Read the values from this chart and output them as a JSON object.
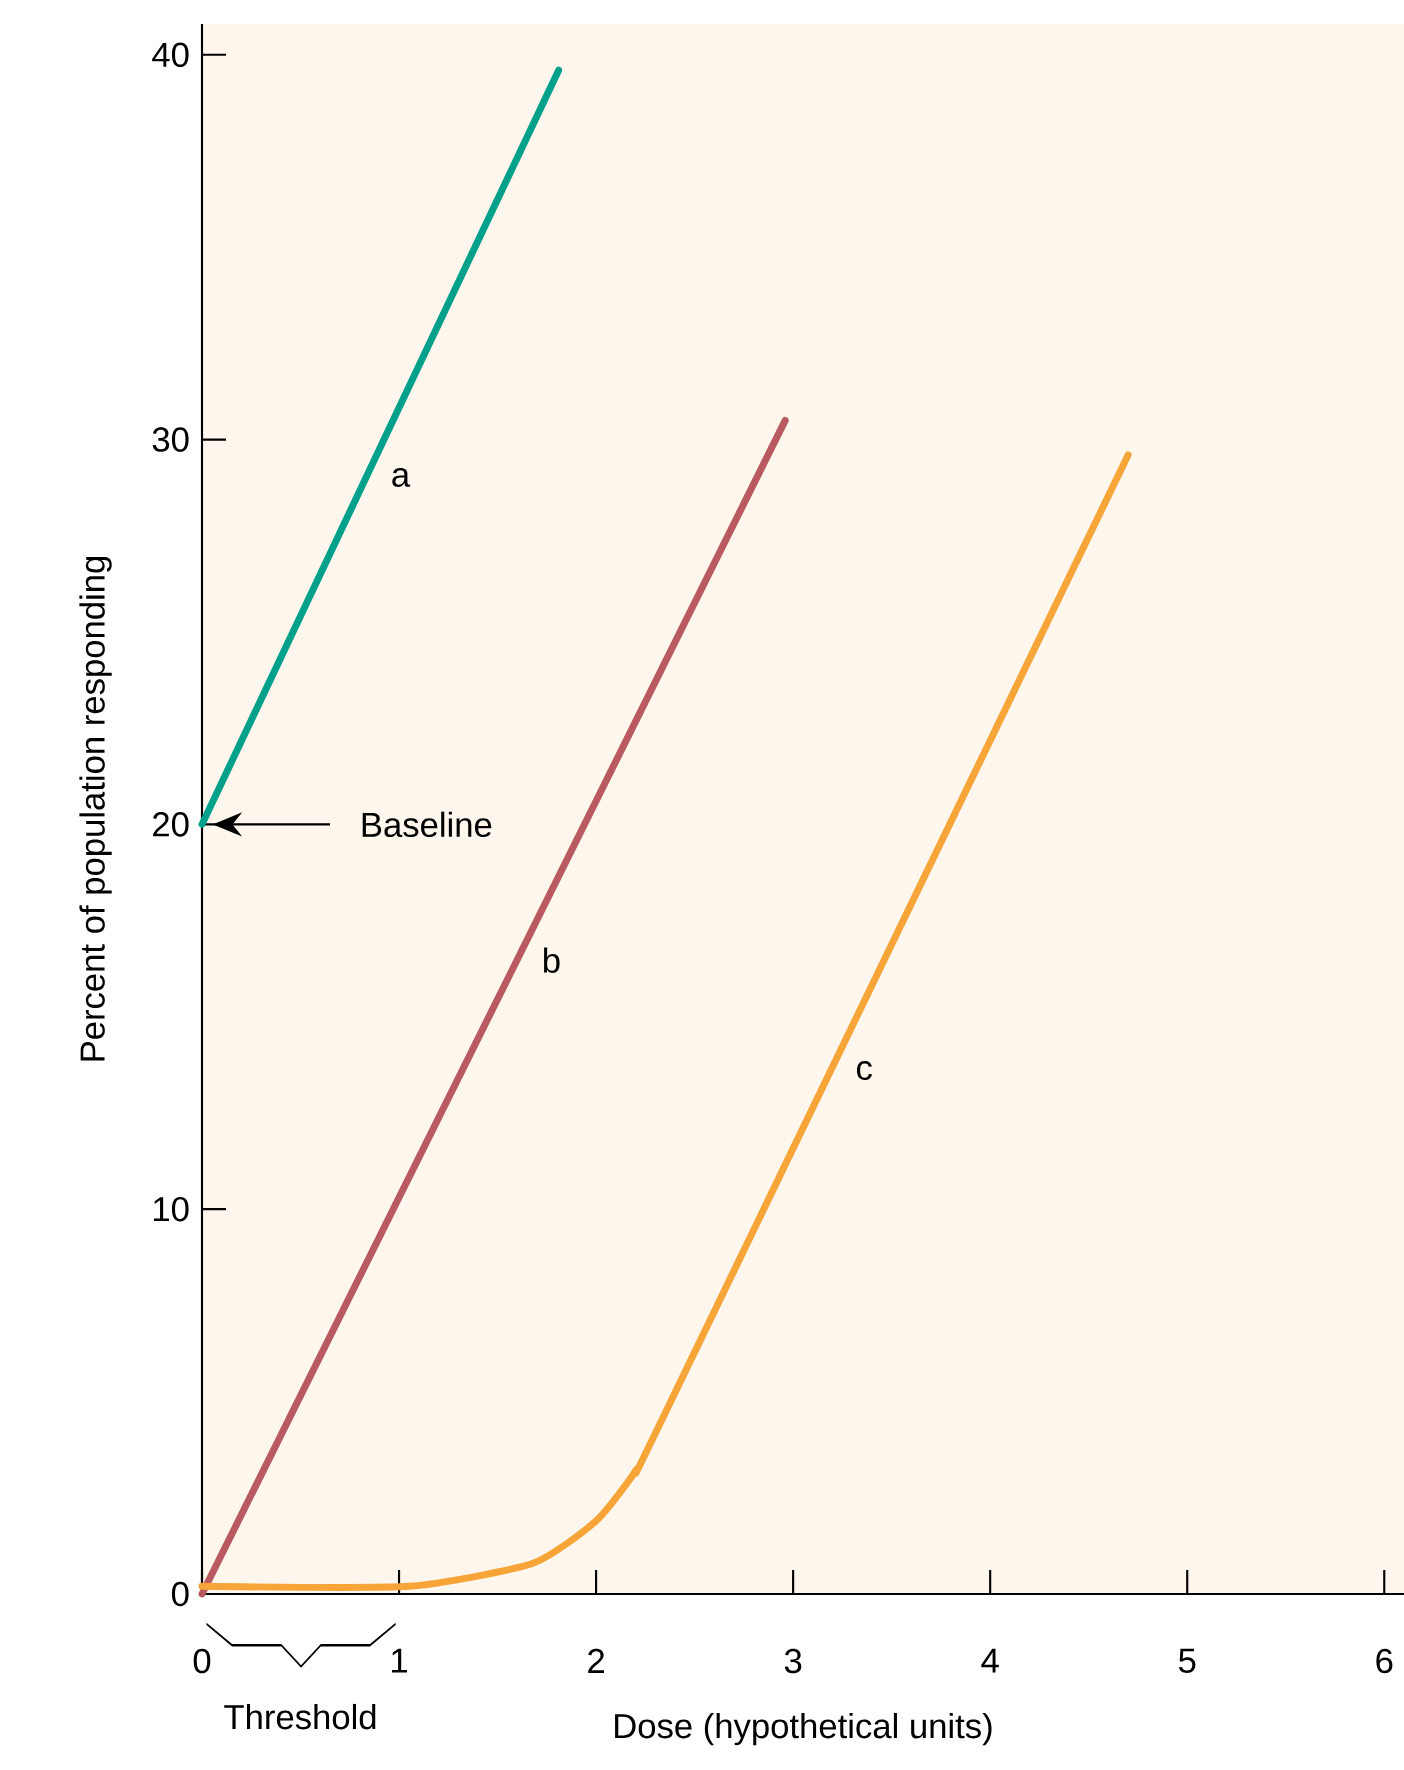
{
  "chart_data": {
    "type": "line",
    "xlabel": "Dose (hypothetical units)",
    "ylabel": "Percent of population responding",
    "xlim": [
      0,
      6.1
    ],
    "ylim": [
      0,
      40.8
    ],
    "xticks": [
      0,
      1,
      2,
      3,
      4,
      5,
      6
    ],
    "yticks": [
      0,
      10,
      20,
      30,
      40
    ],
    "grid": false,
    "legend": false,
    "marker": "none",
    "line_style": "solid",
    "series": [
      {
        "name": "a",
        "color": "#00a08a",
        "x": [
          0,
          1.81
        ],
        "values": [
          20,
          39.6
        ]
      },
      {
        "name": "b",
        "color": "#b85a60",
        "x": [
          0,
          2.96
        ],
        "values": [
          0,
          30.5
        ]
      },
      {
        "name": "c",
        "color": "#f7a538",
        "x": [
          0,
          1.05,
          1.68,
          2.0,
          2.2,
          2.36,
          4.7
        ],
        "values": [
          0.2,
          0.2,
          0.8,
          1.9,
          3.2,
          4.8,
          29.6
        ]
      }
    ],
    "annotations": [
      "Baseline",
      "Threshold"
    ]
  }
}
